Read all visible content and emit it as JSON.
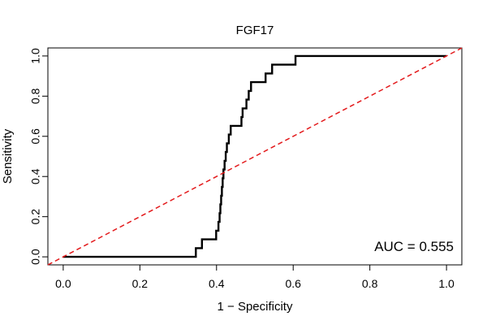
{
  "chart_data": {
    "type": "line",
    "title": "FGF17",
    "xlabel": "1 − Specificity",
    "ylabel": "Sensitivity",
    "xlim": [
      -0.04,
      1.04
    ],
    "ylim": [
      -0.04,
      1.04
    ],
    "x_ticks": [
      0.0,
      0.2,
      0.4,
      0.6,
      0.8,
      1.0
    ],
    "x_tick_labels": [
      "0.0",
      "0.2",
      "0.4",
      "0.6",
      "0.8",
      "1.0"
    ],
    "y_ticks": [
      0.0,
      0.2,
      0.4,
      0.6,
      0.8,
      1.0
    ],
    "y_tick_labels": [
      "0.0",
      "0.2",
      "0.4",
      "0.6",
      "0.8",
      "1.0"
    ],
    "grid": false,
    "annotation": "AUC = 0.555",
    "series": [
      {
        "color": "#000000",
        "style": "solid",
        "points": [
          [
            0.0,
            0.0
          ],
          [
            0.346,
            0.0
          ],
          [
            0.346,
            0.043
          ],
          [
            0.362,
            0.043
          ],
          [
            0.362,
            0.087
          ],
          [
            0.399,
            0.087
          ],
          [
            0.399,
            0.13
          ],
          [
            0.405,
            0.13
          ],
          [
            0.405,
            0.174
          ],
          [
            0.408,
            0.174
          ],
          [
            0.408,
            0.217
          ],
          [
            0.41,
            0.217
          ],
          [
            0.41,
            0.261
          ],
          [
            0.412,
            0.261
          ],
          [
            0.412,
            0.304
          ],
          [
            0.414,
            0.304
          ],
          [
            0.414,
            0.348
          ],
          [
            0.416,
            0.348
          ],
          [
            0.416,
            0.391
          ],
          [
            0.418,
            0.391
          ],
          [
            0.418,
            0.435
          ],
          [
            0.421,
            0.435
          ],
          [
            0.421,
            0.478
          ],
          [
            0.424,
            0.478
          ],
          [
            0.424,
            0.522
          ],
          [
            0.427,
            0.522
          ],
          [
            0.427,
            0.565
          ],
          [
            0.432,
            0.565
          ],
          [
            0.432,
            0.609
          ],
          [
            0.437,
            0.609
          ],
          [
            0.437,
            0.652
          ],
          [
            0.465,
            0.652
          ],
          [
            0.465,
            0.696
          ],
          [
            0.468,
            0.696
          ],
          [
            0.468,
            0.739
          ],
          [
            0.478,
            0.739
          ],
          [
            0.478,
            0.783
          ],
          [
            0.484,
            0.783
          ],
          [
            0.484,
            0.826
          ],
          [
            0.49,
            0.826
          ],
          [
            0.49,
            0.87
          ],
          [
            0.528,
            0.87
          ],
          [
            0.528,
            0.913
          ],
          [
            0.545,
            0.913
          ],
          [
            0.545,
            0.957
          ],
          [
            0.606,
            0.957
          ],
          [
            0.606,
            1.0
          ],
          [
            1.0,
            1.0
          ]
        ]
      },
      {
        "color": "#e31a1c",
        "style": "dashed",
        "points": [
          [
            -0.04,
            -0.04
          ],
          [
            1.04,
            1.04
          ]
        ]
      }
    ]
  }
}
